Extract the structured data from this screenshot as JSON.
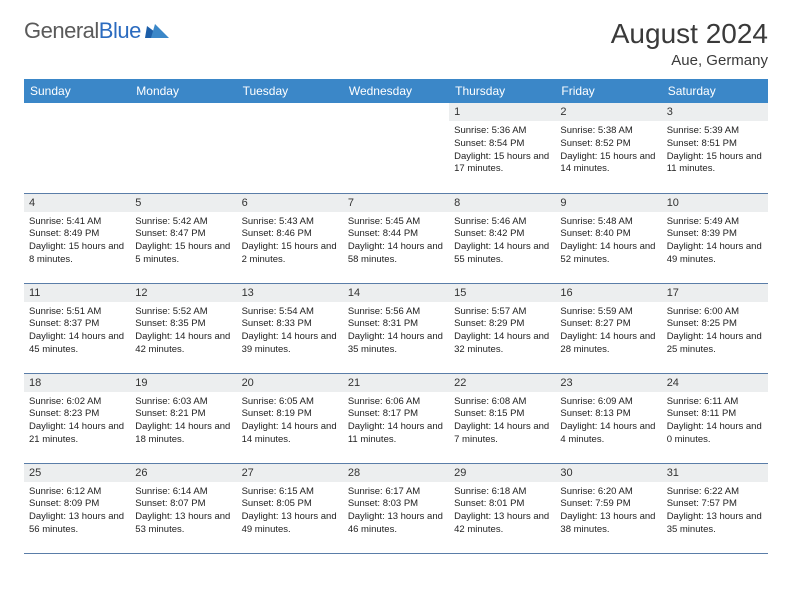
{
  "logo": {
    "text_gray": "General",
    "text_blue": "Blue"
  },
  "title": "August 2024",
  "location": "Aue, Germany",
  "colors": {
    "header_bg": "#3b87c8",
    "header_text": "#ffffff",
    "daynum_bg": "#eceeef",
    "row_border": "#5a7da8"
  },
  "weekdays": [
    "Sunday",
    "Monday",
    "Tuesday",
    "Wednesday",
    "Thursday",
    "Friday",
    "Saturday"
  ],
  "weeks": [
    [
      null,
      null,
      null,
      null,
      {
        "n": "1",
        "sr": "5:36 AM",
        "ss": "8:54 PM",
        "dl": "15 hours and 17 minutes."
      },
      {
        "n": "2",
        "sr": "5:38 AM",
        "ss": "8:52 PM",
        "dl": "15 hours and 14 minutes."
      },
      {
        "n": "3",
        "sr": "5:39 AM",
        "ss": "8:51 PM",
        "dl": "15 hours and 11 minutes."
      }
    ],
    [
      {
        "n": "4",
        "sr": "5:41 AM",
        "ss": "8:49 PM",
        "dl": "15 hours and 8 minutes."
      },
      {
        "n": "5",
        "sr": "5:42 AM",
        "ss": "8:47 PM",
        "dl": "15 hours and 5 minutes."
      },
      {
        "n": "6",
        "sr": "5:43 AM",
        "ss": "8:46 PM",
        "dl": "15 hours and 2 minutes."
      },
      {
        "n": "7",
        "sr": "5:45 AM",
        "ss": "8:44 PM",
        "dl": "14 hours and 58 minutes."
      },
      {
        "n": "8",
        "sr": "5:46 AM",
        "ss": "8:42 PM",
        "dl": "14 hours and 55 minutes."
      },
      {
        "n": "9",
        "sr": "5:48 AM",
        "ss": "8:40 PM",
        "dl": "14 hours and 52 minutes."
      },
      {
        "n": "10",
        "sr": "5:49 AM",
        "ss": "8:39 PM",
        "dl": "14 hours and 49 minutes."
      }
    ],
    [
      {
        "n": "11",
        "sr": "5:51 AM",
        "ss": "8:37 PM",
        "dl": "14 hours and 45 minutes."
      },
      {
        "n": "12",
        "sr": "5:52 AM",
        "ss": "8:35 PM",
        "dl": "14 hours and 42 minutes."
      },
      {
        "n": "13",
        "sr": "5:54 AM",
        "ss": "8:33 PM",
        "dl": "14 hours and 39 minutes."
      },
      {
        "n": "14",
        "sr": "5:56 AM",
        "ss": "8:31 PM",
        "dl": "14 hours and 35 minutes."
      },
      {
        "n": "15",
        "sr": "5:57 AM",
        "ss": "8:29 PM",
        "dl": "14 hours and 32 minutes."
      },
      {
        "n": "16",
        "sr": "5:59 AM",
        "ss": "8:27 PM",
        "dl": "14 hours and 28 minutes."
      },
      {
        "n": "17",
        "sr": "6:00 AM",
        "ss": "8:25 PM",
        "dl": "14 hours and 25 minutes."
      }
    ],
    [
      {
        "n": "18",
        "sr": "6:02 AM",
        "ss": "8:23 PM",
        "dl": "14 hours and 21 minutes."
      },
      {
        "n": "19",
        "sr": "6:03 AM",
        "ss": "8:21 PM",
        "dl": "14 hours and 18 minutes."
      },
      {
        "n": "20",
        "sr": "6:05 AM",
        "ss": "8:19 PM",
        "dl": "14 hours and 14 minutes."
      },
      {
        "n": "21",
        "sr": "6:06 AM",
        "ss": "8:17 PM",
        "dl": "14 hours and 11 minutes."
      },
      {
        "n": "22",
        "sr": "6:08 AM",
        "ss": "8:15 PM",
        "dl": "14 hours and 7 minutes."
      },
      {
        "n": "23",
        "sr": "6:09 AM",
        "ss": "8:13 PM",
        "dl": "14 hours and 4 minutes."
      },
      {
        "n": "24",
        "sr": "6:11 AM",
        "ss": "8:11 PM",
        "dl": "14 hours and 0 minutes."
      }
    ],
    [
      {
        "n": "25",
        "sr": "6:12 AM",
        "ss": "8:09 PM",
        "dl": "13 hours and 56 minutes."
      },
      {
        "n": "26",
        "sr": "6:14 AM",
        "ss": "8:07 PM",
        "dl": "13 hours and 53 minutes."
      },
      {
        "n": "27",
        "sr": "6:15 AM",
        "ss": "8:05 PM",
        "dl": "13 hours and 49 minutes."
      },
      {
        "n": "28",
        "sr": "6:17 AM",
        "ss": "8:03 PM",
        "dl": "13 hours and 46 minutes."
      },
      {
        "n": "29",
        "sr": "6:18 AM",
        "ss": "8:01 PM",
        "dl": "13 hours and 42 minutes."
      },
      {
        "n": "30",
        "sr": "6:20 AM",
        "ss": "7:59 PM",
        "dl": "13 hours and 38 minutes."
      },
      {
        "n": "31",
        "sr": "6:22 AM",
        "ss": "7:57 PM",
        "dl": "13 hours and 35 minutes."
      }
    ]
  ]
}
